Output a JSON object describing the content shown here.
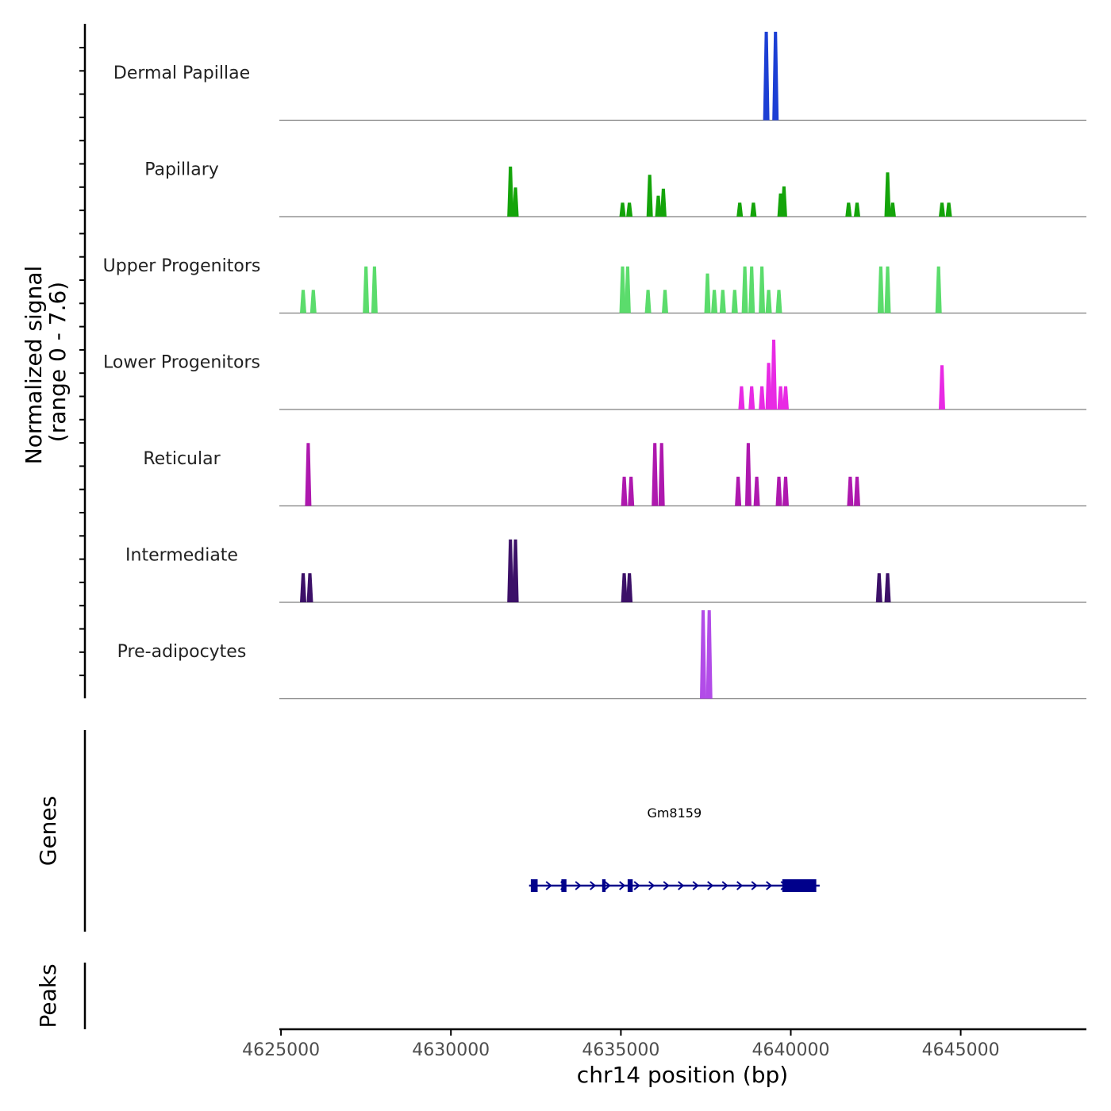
{
  "chart_data": {
    "type": "area",
    "title": "",
    "xlabel": "chr14 position (bp)",
    "ylabel": "Normalized signal",
    "ylabel_range": "(range 0 - 7.6)",
    "ylim": [
      0,
      7.6
    ],
    "xlim": [
      4624950,
      4648700
    ],
    "xticks": [
      4625000,
      4630000,
      4635000,
      4640000,
      4645000
    ],
    "xtick_labels": [
      "4625000",
      "4630000",
      "4635000",
      "4640000",
      "4645000"
    ],
    "baseline_color": "#7f7f7f",
    "tracks": [
      {
        "name": "Dermal Papillae",
        "color": "#1c3fd4",
        "peaks": [
          [
            4639280,
            7.6
          ],
          [
            4639550,
            7.6
          ]
        ]
      },
      {
        "name": "Papillary",
        "color": "#14a40a",
        "peaks": [
          [
            4631750,
            4.3
          ],
          [
            4631900,
            2.5
          ],
          [
            4635050,
            1.2
          ],
          [
            4635250,
            1.2
          ],
          [
            4635850,
            3.6
          ],
          [
            4636100,
            1.8
          ],
          [
            4636250,
            2.4
          ],
          [
            4638500,
            1.2
          ],
          [
            4638900,
            1.2
          ],
          [
            4639700,
            2.0
          ],
          [
            4639800,
            2.6
          ],
          [
            4641700,
            1.2
          ],
          [
            4641950,
            1.2
          ],
          [
            4642850,
            3.8
          ],
          [
            4643000,
            1.2
          ],
          [
            4644450,
            1.2
          ],
          [
            4644650,
            1.2
          ]
        ]
      },
      {
        "name": "Upper Progenitors",
        "color": "#5bdc6c",
        "peaks": [
          [
            4625650,
            2.0
          ],
          [
            4625950,
            2.0
          ],
          [
            4627500,
            4.0
          ],
          [
            4627750,
            4.0
          ],
          [
            4635050,
            4.0
          ],
          [
            4635200,
            4.0
          ],
          [
            4635800,
            2.0
          ],
          [
            4636300,
            2.0
          ],
          [
            4637550,
            3.4
          ],
          [
            4637750,
            2.0
          ],
          [
            4638000,
            2.0
          ],
          [
            4638350,
            2.0
          ],
          [
            4638650,
            4.0
          ],
          [
            4638850,
            4.0
          ],
          [
            4639150,
            4.0
          ],
          [
            4639350,
            2.0
          ],
          [
            4639650,
            2.0
          ],
          [
            4642650,
            4.0
          ],
          [
            4642850,
            4.0
          ],
          [
            4644350,
            4.0
          ]
        ]
      },
      {
        "name": "Lower Progenitors",
        "color": "#e82ae4",
        "peaks": [
          [
            4638550,
            2.0
          ],
          [
            4638850,
            2.0
          ],
          [
            4639150,
            2.0
          ],
          [
            4639350,
            4.0
          ],
          [
            4639500,
            6.0
          ],
          [
            4639700,
            2.0
          ],
          [
            4639850,
            2.0
          ],
          [
            4644450,
            3.8
          ]
        ]
      },
      {
        "name": "Reticular",
        "color": "#ae18ae",
        "peaks": [
          [
            4625800,
            5.4
          ],
          [
            4635100,
            2.5
          ],
          [
            4635300,
            2.5
          ],
          [
            4636000,
            5.4
          ],
          [
            4636200,
            5.4
          ],
          [
            4638450,
            2.5
          ],
          [
            4638750,
            5.4
          ],
          [
            4639000,
            2.5
          ],
          [
            4639650,
            2.5
          ],
          [
            4639850,
            2.5
          ],
          [
            4641750,
            2.5
          ],
          [
            4641950,
            2.5
          ]
        ]
      },
      {
        "name": "Intermediate",
        "color": "#3c1068",
        "peaks": [
          [
            4625650,
            2.5
          ],
          [
            4625850,
            2.5
          ],
          [
            4631750,
            5.4
          ],
          [
            4631900,
            5.4
          ],
          [
            4635100,
            2.5
          ],
          [
            4635250,
            2.5
          ],
          [
            4642600,
            2.5
          ],
          [
            4642850,
            2.5
          ]
        ]
      },
      {
        "name": "Pre-adipocytes",
        "color": "#b24ce8",
        "peaks": [
          [
            4637420,
            7.6
          ],
          [
            4637600,
            7.6
          ]
        ]
      }
    ],
    "genes_panel": {
      "title": "Genes",
      "color": "#00008b",
      "genes": [
        {
          "name": "Gm8159",
          "strand": "+",
          "start": 4632300,
          "end": 4640850,
          "exons": [
            [
              4632350,
              4632550
            ],
            [
              4633250,
              4633400
            ],
            [
              4634450,
              4634550
            ],
            [
              4635200,
              4635350
            ],
            [
              4639750,
              4640750
            ]
          ]
        }
      ]
    },
    "peaks_panel": {
      "title": "Peaks",
      "regions": []
    }
  }
}
